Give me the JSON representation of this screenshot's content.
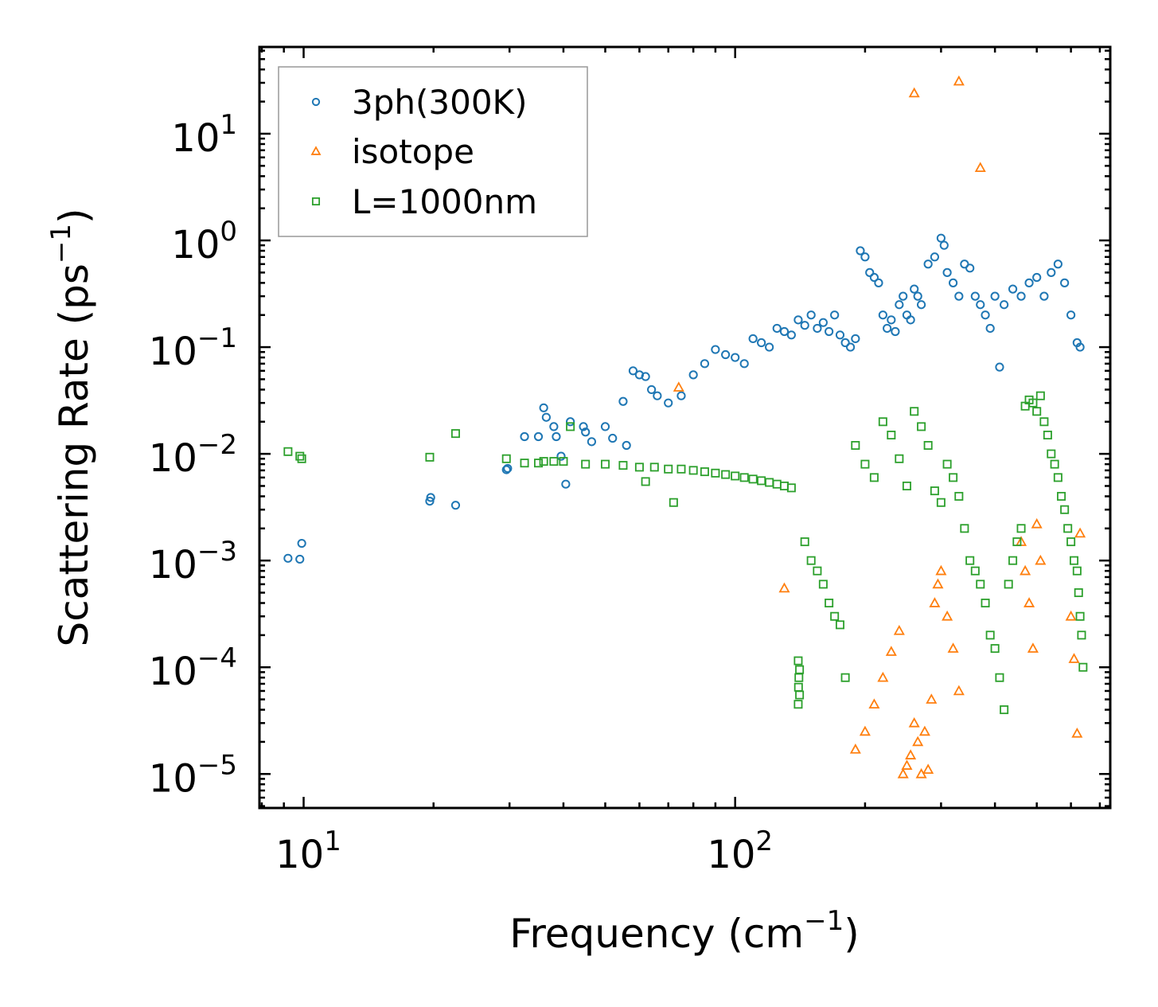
{
  "chart_data": {
    "type": "scatter",
    "title": "",
    "xlabel": {
      "text": "Frequency (cm",
      "exp": "−1",
      "close": ")"
    },
    "ylabel": {
      "text": "Scattering Rate (ps",
      "exp": "−1",
      "close": ")"
    },
    "xscale": "log",
    "yscale": "log",
    "xlim": [
      7.9,
      740
    ],
    "ylim": [
      4.8e-06,
      65
    ],
    "xticks": [
      {
        "value": 10,
        "base": "10",
        "exp": "1"
      },
      {
        "value": 100,
        "base": "10",
        "exp": "2"
      }
    ],
    "yticks": [
      {
        "value": 1e-05,
        "base": "10",
        "exp": "−5"
      },
      {
        "value": 0.0001,
        "base": "10",
        "exp": "−4"
      },
      {
        "value": 0.001,
        "base": "10",
        "exp": "−3"
      },
      {
        "value": 0.01,
        "base": "10",
        "exp": "−2"
      },
      {
        "value": 0.1,
        "base": "10",
        "exp": "−1"
      },
      {
        "value": 1,
        "base": "10",
        "exp": "0"
      },
      {
        "value": 10,
        "base": "10",
        "exp": "1"
      }
    ],
    "legend_position": "top-left",
    "series": [
      {
        "name": "3ph(300K)",
        "marker": "circle",
        "color": "#1f77b4",
        "points": [
          [
            9.2,
            0.00105
          ],
          [
            9.8,
            0.00103
          ],
          [
            9.9,
            0.00145
          ],
          [
            19.6,
            0.0036
          ],
          [
            19.7,
            0.0039
          ],
          [
            22.5,
            0.0033
          ],
          [
            29.5,
            0.0071
          ],
          [
            29.7,
            0.0073
          ],
          [
            32.5,
            0.0145
          ],
          [
            35.0,
            0.0145
          ],
          [
            36.0,
            0.027
          ],
          [
            36.5,
            0.022
          ],
          [
            38.0,
            0.018
          ],
          [
            38.5,
            0.0145
          ],
          [
            39.5,
            0.0095
          ],
          [
            40.5,
            0.0052
          ],
          [
            41.5,
            0.02
          ],
          [
            44.5,
            0.018
          ],
          [
            45.0,
            0.016
          ],
          [
            46.5,
            0.013
          ],
          [
            50.0,
            0.018
          ],
          [
            52.0,
            0.014
          ],
          [
            55.0,
            0.031
          ],
          [
            56.0,
            0.012
          ],
          [
            58.0,
            0.06
          ],
          [
            60.0,
            0.055
          ],
          [
            62.0,
            0.053
          ],
          [
            64.0,
            0.04
          ],
          [
            66.0,
            0.035
          ],
          [
            70.0,
            0.03
          ],
          [
            75.0,
            0.035
          ],
          [
            80.0,
            0.055
          ],
          [
            85.0,
            0.07
          ],
          [
            90.0,
            0.095
          ],
          [
            95.0,
            0.085
          ],
          [
            100.0,
            0.08
          ],
          [
            105.0,
            0.07
          ],
          [
            110.0,
            0.12
          ],
          [
            115.0,
            0.11
          ],
          [
            120.0,
            0.1
          ],
          [
            125.0,
            0.15
          ],
          [
            130.0,
            0.14
          ],
          [
            135.0,
            0.13
          ],
          [
            140.0,
            0.18
          ],
          [
            145.0,
            0.16
          ],
          [
            150.0,
            0.2
          ],
          [
            155.0,
            0.15
          ],
          [
            160.0,
            0.17
          ],
          [
            165.0,
            0.14
          ],
          [
            170.0,
            0.2
          ],
          [
            175.0,
            0.13
          ],
          [
            180.0,
            0.11
          ],
          [
            185.0,
            0.1
          ],
          [
            190.0,
            0.12
          ],
          [
            195.0,
            0.8
          ],
          [
            200.0,
            0.7
          ],
          [
            205.0,
            0.5
          ],
          [
            210.0,
            0.45
          ],
          [
            215.0,
            0.4
          ],
          [
            220.0,
            0.2
          ],
          [
            225.0,
            0.15
          ],
          [
            230.0,
            0.18
          ],
          [
            235.0,
            0.14
          ],
          [
            240.0,
            0.25
          ],
          [
            245.0,
            0.3
          ],
          [
            250.0,
            0.2
          ],
          [
            255.0,
            0.18
          ],
          [
            260.0,
            0.35
          ],
          [
            265.0,
            0.3
          ],
          [
            270.0,
            0.25
          ],
          [
            280.0,
            0.6
          ],
          [
            290.0,
            0.7
          ],
          [
            300.0,
            1.05
          ],
          [
            305.0,
            0.9
          ],
          [
            310.0,
            0.5
          ],
          [
            320.0,
            0.4
          ],
          [
            330.0,
            0.3
          ],
          [
            340.0,
            0.6
          ],
          [
            350.0,
            0.55
          ],
          [
            360.0,
            0.3
          ],
          [
            370.0,
            0.25
          ],
          [
            380.0,
            0.2
          ],
          [
            390.0,
            0.15
          ],
          [
            400.0,
            0.3
          ],
          [
            410.0,
            0.065
          ],
          [
            420.0,
            0.25
          ],
          [
            440.0,
            0.35
          ],
          [
            460.0,
            0.3
          ],
          [
            480.0,
            0.4
          ],
          [
            500.0,
            0.45
          ],
          [
            520.0,
            0.3
          ],
          [
            540.0,
            0.5
          ],
          [
            560.0,
            0.6
          ],
          [
            580.0,
            0.4
          ],
          [
            600.0,
            0.2
          ],
          [
            620.0,
            0.11
          ],
          [
            630.0,
            0.1
          ]
        ]
      },
      {
        "name": "isotope",
        "marker": "triangle",
        "color": "#ff7f0e",
        "points": [
          [
            74.0,
            0.042
          ],
          [
            130.0,
            0.00055
          ],
          [
            190.0,
            1.7e-05
          ],
          [
            200.0,
            2.5e-05
          ],
          [
            210.0,
            4.5e-05
          ],
          [
            220.0,
            8e-05
          ],
          [
            230.0,
            0.00014
          ],
          [
            240.0,
            0.00022
          ],
          [
            245.0,
            1e-05
          ],
          [
            250.0,
            1.2e-05
          ],
          [
            255.0,
            1.5e-05
          ],
          [
            260.0,
            3e-05
          ],
          [
            265.0,
            2e-05
          ],
          [
            270.0,
            1e-05
          ],
          [
            275.0,
            2.5e-05
          ],
          [
            280.0,
            1.1e-05
          ],
          [
            285.0,
            5e-05
          ],
          [
            290.0,
            0.0004
          ],
          [
            295.0,
            0.0006
          ],
          [
            300.0,
            0.0008
          ],
          [
            310.0,
            0.0003
          ],
          [
            320.0,
            0.00015
          ],
          [
            330.0,
            6e-05
          ],
          [
            260.0,
            24.0
          ],
          [
            330.0,
            31.0
          ],
          [
            370.0,
            4.8
          ],
          [
            460.0,
            0.0015
          ],
          [
            470.0,
            0.0008
          ],
          [
            480.0,
            0.0004
          ],
          [
            490.0,
            0.00015
          ],
          [
            500.0,
            0.0022
          ],
          [
            510.0,
            0.001
          ],
          [
            600.0,
            0.0003
          ],
          [
            610.0,
            0.00012
          ],
          [
            620.0,
            2.4e-05
          ],
          [
            630.0,
            0.0018
          ]
        ]
      },
      {
        "name": "L=1000nm",
        "marker": "square",
        "color": "#2ca02c",
        "points": [
          [
            9.2,
            0.0105
          ],
          [
            9.8,
            0.0095
          ],
          [
            9.9,
            0.009
          ],
          [
            19.6,
            0.0093
          ],
          [
            22.5,
            0.0155
          ],
          [
            29.5,
            0.009
          ],
          [
            32.5,
            0.0082
          ],
          [
            35.0,
            0.0082
          ],
          [
            36.0,
            0.0085
          ],
          [
            38.0,
            0.0085
          ],
          [
            40.0,
            0.0085
          ],
          [
            41.5,
            0.018
          ],
          [
            45.0,
            0.008
          ],
          [
            50.0,
            0.008
          ],
          [
            55.0,
            0.0078
          ],
          [
            60.0,
            0.0075
          ],
          [
            62.0,
            0.0055
          ],
          [
            65.0,
            0.0075
          ],
          [
            70.0,
            0.0072
          ],
          [
            72.0,
            0.0035
          ],
          [
            75.0,
            0.0072
          ],
          [
            80.0,
            0.007
          ],
          [
            85.0,
            0.0068
          ],
          [
            90.0,
            0.0066
          ],
          [
            95.0,
            0.0064
          ],
          [
            100.0,
            0.0062
          ],
          [
            105.0,
            0.006
          ],
          [
            110.0,
            0.0058
          ],
          [
            115.0,
            0.0056
          ],
          [
            120.0,
            0.0054
          ],
          [
            125.0,
            0.0052
          ],
          [
            130.0,
            0.005
          ],
          [
            135.0,
            0.0048
          ],
          [
            140.0,
            0.000115
          ],
          [
            141.0,
            9.5e-05
          ],
          [
            140.5,
            8e-05
          ],
          [
            140.2,
            6.5e-05
          ],
          [
            141.0,
            5.5e-05
          ],
          [
            140.0,
            4.5e-05
          ],
          [
            145.0,
            0.0015
          ],
          [
            150.0,
            0.001
          ],
          [
            155.0,
            0.0008
          ],
          [
            160.0,
            0.0006
          ],
          [
            165.0,
            0.0004
          ],
          [
            170.0,
            0.0003
          ],
          [
            175.0,
            0.00025
          ],
          [
            180.0,
            8e-05
          ],
          [
            190.0,
            0.012
          ],
          [
            200.0,
            0.008
          ],
          [
            210.0,
            0.006
          ],
          [
            220.0,
            0.02
          ],
          [
            230.0,
            0.015
          ],
          [
            240.0,
            0.009
          ],
          [
            250.0,
            0.005
          ],
          [
            260.0,
            0.025
          ],
          [
            270.0,
            0.018
          ],
          [
            280.0,
            0.012
          ],
          [
            290.0,
            0.0045
          ],
          [
            300.0,
            0.0035
          ],
          [
            310.0,
            0.008
          ],
          [
            320.0,
            0.006
          ],
          [
            330.0,
            0.004
          ],
          [
            340.0,
            0.002
          ],
          [
            350.0,
            0.001
          ],
          [
            360.0,
            0.0008
          ],
          [
            370.0,
            0.0006
          ],
          [
            380.0,
            0.0004
          ],
          [
            390.0,
            0.0002
          ],
          [
            400.0,
            0.00015
          ],
          [
            410.0,
            8e-05
          ],
          [
            420.0,
            4e-05
          ],
          [
            430.0,
            0.0006
          ],
          [
            440.0,
            0.001
          ],
          [
            450.0,
            0.0015
          ],
          [
            460.0,
            0.002
          ],
          [
            470.0,
            0.028
          ],
          [
            480.0,
            0.032
          ],
          [
            490.0,
            0.03
          ],
          [
            500.0,
            0.025
          ],
          [
            510.0,
            0.035
          ],
          [
            520.0,
            0.02
          ],
          [
            530.0,
            0.015
          ],
          [
            540.0,
            0.01
          ],
          [
            550.0,
            0.008
          ],
          [
            560.0,
            0.006
          ],
          [
            570.0,
            0.004
          ],
          [
            580.0,
            0.003
          ],
          [
            590.0,
            0.002
          ],
          [
            600.0,
            0.0015
          ],
          [
            610.0,
            0.001
          ],
          [
            620.0,
            0.0008
          ],
          [
            625.0,
            0.0005
          ],
          [
            630.0,
            0.0003
          ],
          [
            635.0,
            0.0002
          ],
          [
            640.0,
            0.0001
          ]
        ]
      }
    ]
  }
}
